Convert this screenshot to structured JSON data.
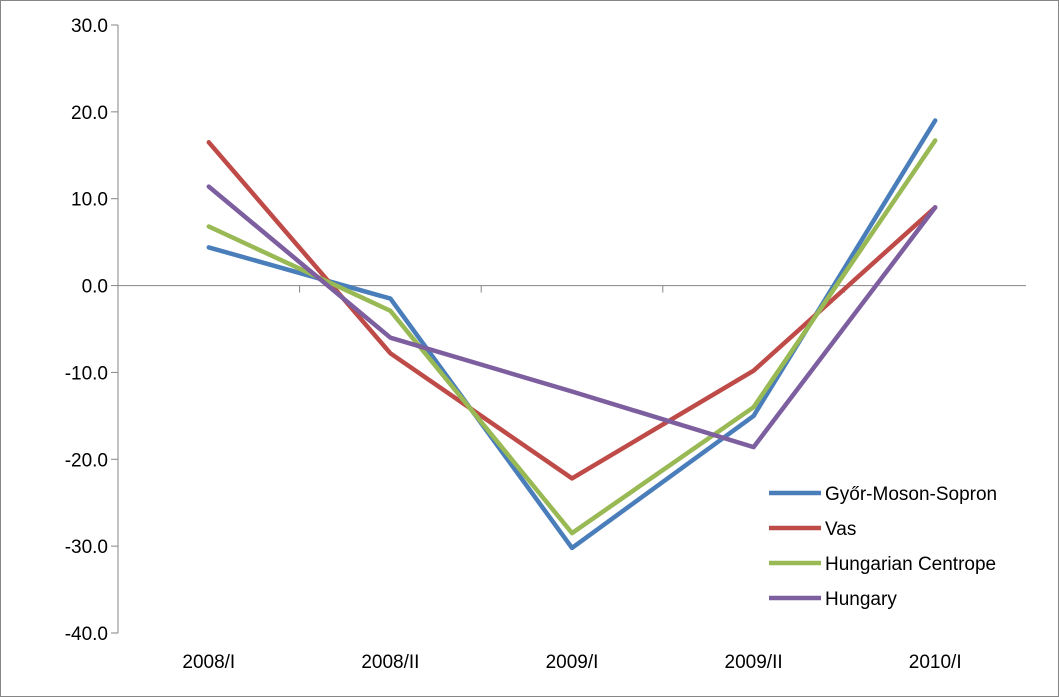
{
  "chart_data": {
    "type": "line",
    "title": "",
    "xlabel": "",
    "ylabel": "",
    "categories": [
      "2008/I",
      "2008/II",
      "2009/I",
      "2009/II",
      "2010/I"
    ],
    "ylim": [
      -40,
      30
    ],
    "ytick_step": 10,
    "ytick_labels": [
      "30.0",
      "20.0",
      "10.0",
      "0.0",
      "-10.0",
      "-20.0",
      "-30.0",
      "-40.0"
    ],
    "grid": false,
    "legend_position": "bottom-right",
    "series": [
      {
        "name": "Győr-Moson-Sopron",
        "color": "#4a7ebb",
        "values": [
          4.4,
          -1.5,
          -30.2,
          -15.0,
          19.0
        ]
      },
      {
        "name": "Vas",
        "color": "#be4b48",
        "values": [
          16.5,
          -7.8,
          -22.2,
          -9.8,
          9.0
        ]
      },
      {
        "name": "Hungarian Centrope",
        "color": "#98b954",
        "values": [
          6.8,
          -2.9,
          -28.5,
          -14.0,
          16.7
        ]
      },
      {
        "name": "Hungary",
        "color": "#7d5fa0",
        "values": [
          11.4,
          -6.0,
          -12.2,
          -18.6,
          9.0
        ]
      }
    ]
  }
}
